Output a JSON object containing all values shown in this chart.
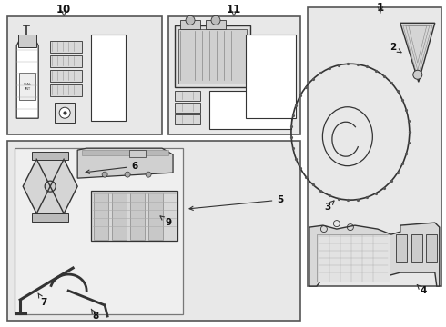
{
  "bg": "#ffffff",
  "lc": "#333333",
  "fc_light": "#e8e8e8",
  "fc_white": "#ffffff",
  "fc_gray": "#cccccc",
  "bc": "#555555",
  "tc": "#111111"
}
